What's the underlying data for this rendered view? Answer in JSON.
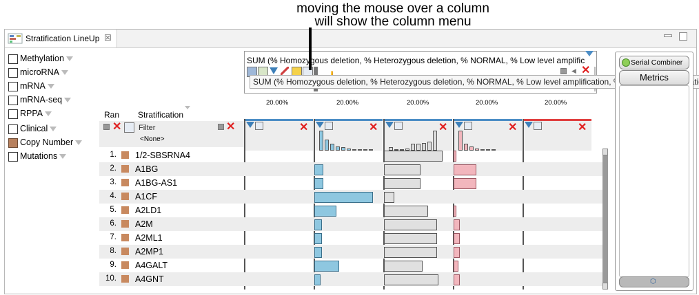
{
  "annotation": {
    "line1": "moving the mouse over a column",
    "line2": "will show the column menu"
  },
  "tab": {
    "title": "Stratification LineUp",
    "close": "☒"
  },
  "categories": [
    {
      "label": "Methylation",
      "checked": false
    },
    {
      "label": "microRNA",
      "checked": false
    },
    {
      "label": "mRNA",
      "checked": false
    },
    {
      "label": "mRNA-seq",
      "checked": false
    },
    {
      "label": "RPPA",
      "checked": false
    },
    {
      "label": "Clinical",
      "checked": false
    },
    {
      "label": "Copy Number",
      "checked": true
    },
    {
      "label": "Mutations",
      "checked": false
    }
  ],
  "table": {
    "rank_header": "Ran",
    "stratification_header": "Stratification",
    "filter_label": "Filter",
    "filter_value": "<None>",
    "sum_header": "SUM (% Homozygous deletion, % Heterozygous deletion, % NORMAL, % Low level amplific",
    "percent_marks": [
      "20.00%",
      "20.00%",
      "20.00%",
      "20.00%",
      "20.00%"
    ],
    "tooltip": "SUM (% Homozygous deletion, % Heterozygous deletion, % NORMAL, % Low level amplification, % High level amplificatio",
    "rows": [
      {
        "rank": "1.",
        "name": "1/2-SBSRNA4",
        "v": [
          0.0,
          0.0,
          0.85,
          0.04,
          0.0
        ]
      },
      {
        "rank": "2.",
        "name": "A1BG",
        "v": [
          0.0,
          0.13,
          0.53,
          0.33,
          0.0
        ]
      },
      {
        "rank": "3.",
        "name": "A1BG-AS1",
        "v": [
          0.0,
          0.13,
          0.53,
          0.33,
          0.0
        ]
      },
      {
        "rank": "4.",
        "name": "A1CF",
        "v": [
          0.0,
          0.85,
          0.15,
          0.0,
          0.0
        ]
      },
      {
        "rank": "5.",
        "name": "A2LD1",
        "v": [
          0.0,
          0.32,
          0.64,
          0.04,
          0.0
        ]
      },
      {
        "rank": "6.",
        "name": "A2M",
        "v": [
          0.0,
          0.11,
          0.77,
          0.09,
          0.0
        ]
      },
      {
        "rank": "7.",
        "name": "A2ML1",
        "v": [
          0.0,
          0.11,
          0.77,
          0.09,
          0.0
        ]
      },
      {
        "rank": "8.",
        "name": "A2MP1",
        "v": [
          0.0,
          0.11,
          0.77,
          0.09,
          0.0
        ]
      },
      {
        "rank": "9.",
        "name": "A4GALT",
        "v": [
          0.0,
          0.36,
          0.56,
          0.07,
          0.0
        ]
      },
      {
        "rank": "10.",
        "name": "A4GNT",
        "v": [
          0.0,
          0.09,
          0.79,
          0.09,
          0.0
        ]
      }
    ]
  },
  "right_panel": {
    "serial_combiner": "Serial Combiner",
    "metrics": "Metrics"
  },
  "colors": {
    "c1": "#8ec7e0",
    "c2": "#e0e0e0",
    "c3": "#f2b6bd",
    "swatch": "#c8895f"
  }
}
